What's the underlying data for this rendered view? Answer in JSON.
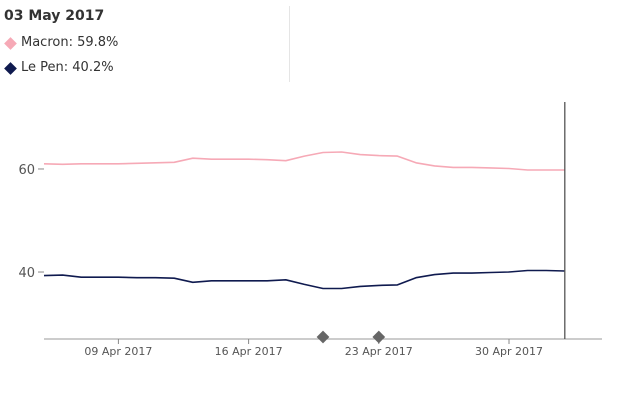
{
  "legend": {
    "date": "03 May 2017",
    "items": [
      {
        "label": "Macron:",
        "value": "59.8%",
        "color": "#f6a9b6"
      },
      {
        "label": "Le Pen:",
        "value": "40.2%",
        "color": "#0f1a4f"
      }
    ]
  },
  "chart_data": {
    "type": "line",
    "title": "",
    "xlabel": "",
    "ylabel": "",
    "grid": false,
    "x_range": [
      "2017-04-05",
      "2017-05-05"
    ],
    "ylim": [
      27,
      73
    ],
    "y_ticks": [
      {
        "value": 40,
        "label": "40"
      },
      {
        "value": 60,
        "label": "60"
      }
    ],
    "x_ticks": [
      {
        "date": "2017-04-09",
        "label": "09 Apr 2017"
      },
      {
        "date": "2017-04-16",
        "label": "16 Apr 2017"
      },
      {
        "date": "2017-04-23",
        "label": "23 Apr 2017"
      },
      {
        "date": "2017-04-30",
        "label": "30 Apr 2017"
      }
    ],
    "markers": [
      {
        "date": "2017-04-20"
      },
      {
        "date": "2017-04-23"
      }
    ],
    "cursor": {
      "date": "2017-05-03"
    },
    "x": [
      "2017-04-05",
      "2017-04-06",
      "2017-04-07",
      "2017-04-08",
      "2017-04-09",
      "2017-04-10",
      "2017-04-11",
      "2017-04-12",
      "2017-04-13",
      "2017-04-14",
      "2017-04-15",
      "2017-04-16",
      "2017-04-17",
      "2017-04-18",
      "2017-04-19",
      "2017-04-20",
      "2017-04-21",
      "2017-04-22",
      "2017-04-23",
      "2017-04-24",
      "2017-04-25",
      "2017-04-26",
      "2017-04-27",
      "2017-04-28",
      "2017-04-29",
      "2017-04-30",
      "2017-05-01",
      "2017-05-02",
      "2017-05-03"
    ],
    "series": [
      {
        "name": "Macron",
        "color": "#f6a9b6",
        "values": [
          61.0,
          60.9,
          61.0,
          61.0,
          61.0,
          61.1,
          61.2,
          61.3,
          62.1,
          61.9,
          61.9,
          61.9,
          61.8,
          61.6,
          62.5,
          63.2,
          63.3,
          62.8,
          62.6,
          62.5,
          61.2,
          60.6,
          60.3,
          60.3,
          60.2,
          60.1,
          59.8,
          59.8,
          59.8
        ]
      },
      {
        "name": "Le Pen",
        "color": "#0f1a4f",
        "values": [
          39.3,
          39.4,
          39.0,
          39.0,
          39.0,
          38.9,
          38.9,
          38.8,
          38.0,
          38.3,
          38.3,
          38.3,
          38.3,
          38.5,
          37.6,
          36.8,
          36.8,
          37.2,
          37.4,
          37.5,
          38.9,
          39.5,
          39.8,
          39.8,
          39.9,
          40.0,
          40.3,
          40.3,
          40.2
        ]
      }
    ]
  }
}
